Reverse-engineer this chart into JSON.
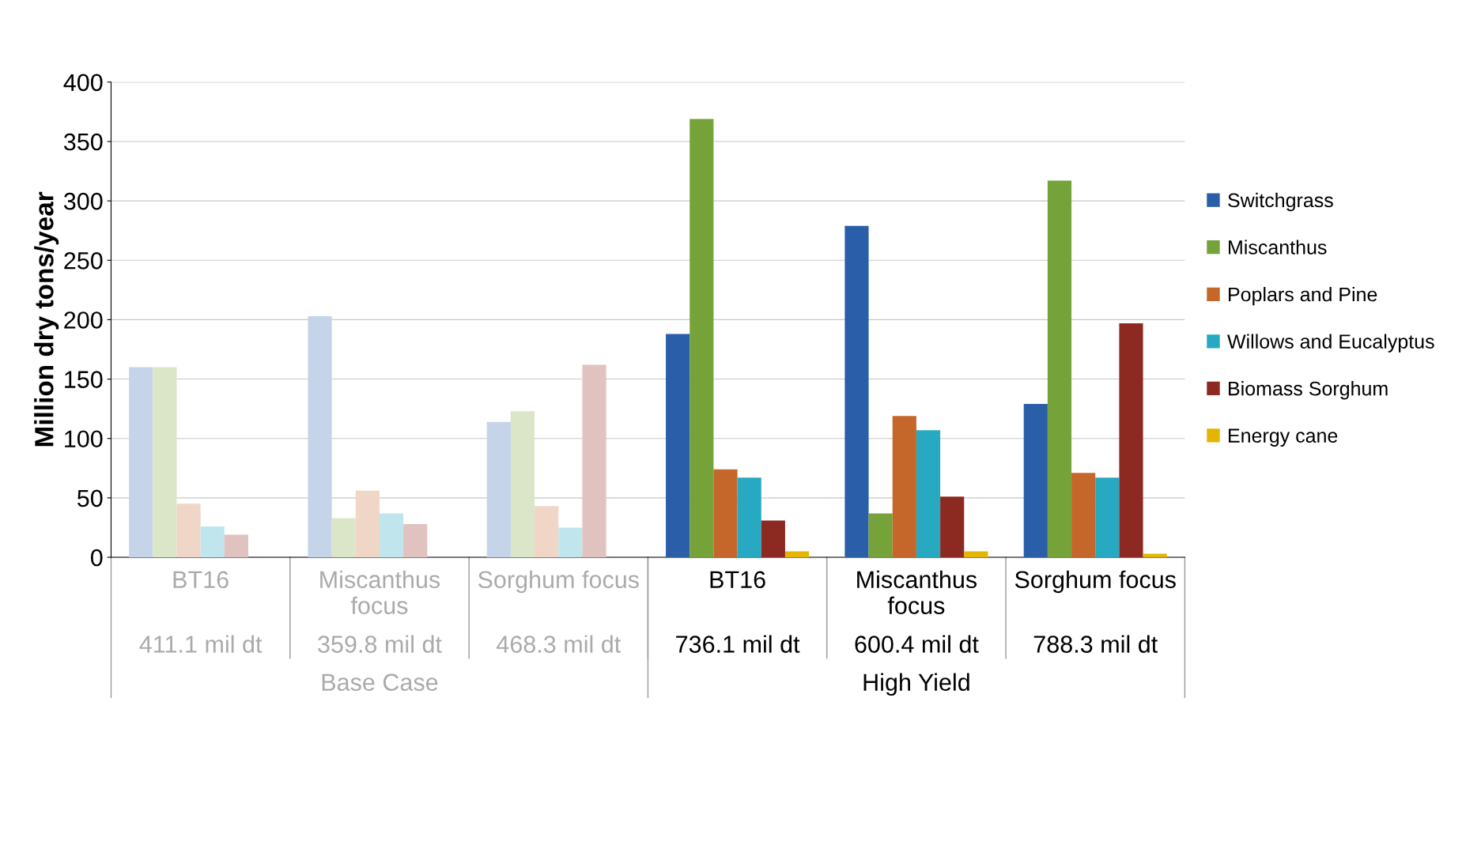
{
  "chart_data": {
    "type": "bar",
    "ylabel": "Million dry tons/year",
    "categories": [
      "BT16",
      "Miscanthus\nfocus",
      "Sorghum focus",
      "BT16",
      "Miscanthus\nfocus",
      "Sorghum focus"
    ],
    "series": [
      {
        "name": "Switchgrass",
        "color": "#2a5ea8",
        "colors": [
          "#c5d4e8",
          "#c5d4e8",
          "#c5d4e8",
          "#2a5ea8",
          "#2a5ea8",
          "#2a5ea8"
        ],
        "values": [
          160,
          203,
          114,
          188,
          279,
          129
        ]
      },
      {
        "name": "Miscanthus",
        "color": "#76a23a",
        "colors": [
          "#dbe6c9",
          "#dbe6c9",
          "#dbe6c9",
          "#76a23a",
          "#76a23a",
          "#76a23a"
        ],
        "values": [
          160,
          33,
          123,
          369,
          37,
          317
        ]
      },
      {
        "name": "Poplars and Pine",
        "color": "#c5672a",
        "colors": [
          "#f0d6c6",
          "#f0d6c6",
          "#f0d6c6",
          "#c5672a",
          "#c5672a",
          "#c5672a"
        ],
        "values": [
          45,
          56,
          43,
          74,
          119,
          71
        ]
      },
      {
        "name": "Willows and Eucalyptus",
        "color": "#27a9c2",
        "colors": [
          "#c1e5ec",
          "#c1e5ec",
          "#c1e5ec",
          "#27a9c2",
          "#27a9c2",
          "#27a9c2"
        ],
        "values": [
          26,
          37,
          25,
          67,
          107,
          67
        ]
      },
      {
        "name": "Biomass Sorghum",
        "color": "#8c2a22",
        "colors": [
          "#e0c2c0",
          "#e0c2c0",
          "#e0c2c0",
          "#8c2a22",
          "#8c2a22",
          "#8c2a22"
        ],
        "values": [
          19,
          28,
          162,
          31,
          51,
          197
        ]
      },
      {
        "name": "Energy cane",
        "color": "#e3b500",
        "colors": [
          "#f7e9b3",
          "#f7e9b3",
          "#f7e9b3",
          "#e3b500",
          "#e3b500",
          "#e3b500"
        ],
        "values": [
          0,
          0,
          0,
          5,
          5,
          3
        ]
      }
    ],
    "annotations": [
      "411.1 mil dt",
      "359.8 mil dt",
      "468.3 mil dt",
      "736.1 mil dt",
      "600.4 mil dt",
      "788.3 mil dt",
      "Base Case",
      "High Yield"
    ],
    "ylim": [
      0,
      400
    ],
    "yticks": [
      0,
      50,
      100,
      150,
      200,
      250,
      300,
      350,
      400
    ],
    "grid": "y",
    "legend": "right"
  }
}
